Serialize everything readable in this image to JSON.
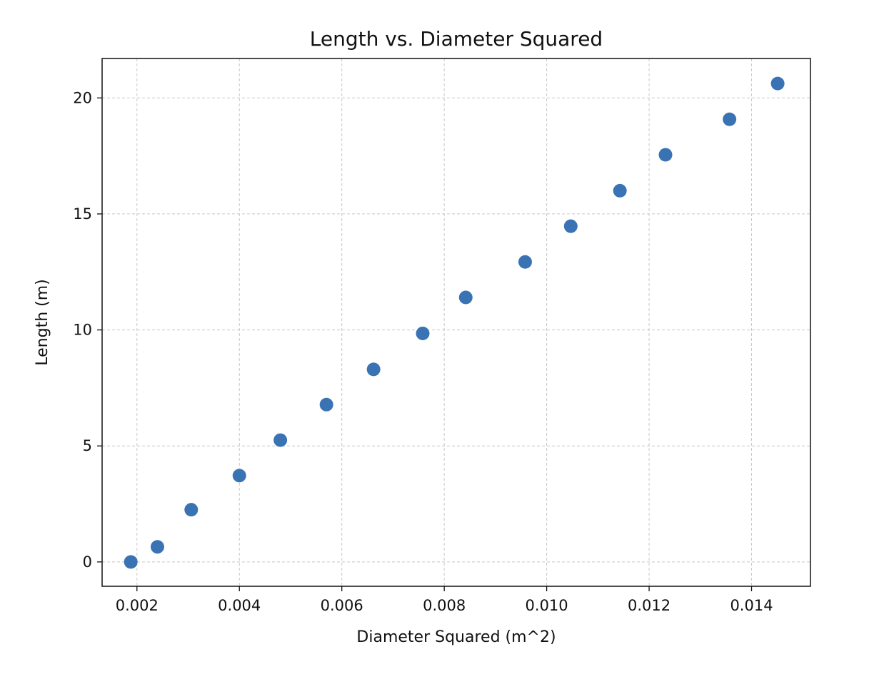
{
  "chart_data": {
    "type": "scatter",
    "title": "Length vs. Diameter Squared",
    "xlabel": "Diameter Squared (m^2)",
    "ylabel": "Length (m)",
    "xlim": [
      0.00132,
      0.01515
    ],
    "ylim": [
      -1.05,
      21.7
    ],
    "xticks": [
      0.002,
      0.004,
      0.006,
      0.008,
      0.01,
      0.012,
      0.014
    ],
    "xtick_labels": [
      "0.002",
      "0.004",
      "0.006",
      "0.008",
      "0.010",
      "0.012",
      "0.014"
    ],
    "yticks": [
      0,
      5,
      10,
      15,
      20
    ],
    "ytick_labels": [
      "0",
      "5",
      "10",
      "15",
      "20"
    ],
    "grid": true,
    "marker_color": "#3a73b4",
    "series": [
      {
        "x": [
          0.00188,
          0.0024,
          0.00306,
          0.004,
          0.0048,
          0.0057,
          0.00662,
          0.00758,
          0.00842,
          0.00958,
          0.01047,
          0.01143,
          0.01232,
          0.01357,
          0.01451
        ],
        "y": [
          0.0,
          0.65,
          2.25,
          3.72,
          5.25,
          6.78,
          8.3,
          9.85,
          11.4,
          12.93,
          14.47,
          16.0,
          17.55,
          19.08,
          20.62
        ]
      }
    ]
  }
}
